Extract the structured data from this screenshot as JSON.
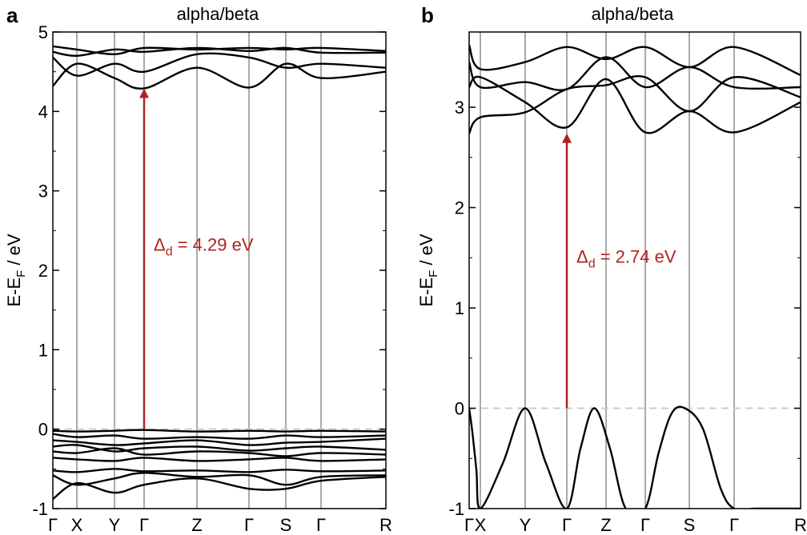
{
  "colors": {
    "band": "#000000",
    "arrow": "#b22222",
    "fermi": "#cccccc",
    "kline": "#555555"
  },
  "chart_data": [
    {
      "type": "line",
      "panel_label": "a",
      "title": "alpha/beta",
      "ylabel_main": "E-E",
      "ylabel_sub": "F",
      "ylabel_unit": " / eV",
      "ylim": [
        -1,
        5
      ],
      "yticks": [
        "-1",
        "0",
        "1",
        "2",
        "3",
        "4",
        "5"
      ],
      "xticks": [
        "Γ",
        "X",
        "Y",
        "Γ",
        "Z",
        "Γ",
        "S",
        "Γ",
        "R"
      ],
      "fermi_level": 0,
      "annotation": {
        "delta": "Δ",
        "sub": "d",
        "text": " = 4.29 eV",
        "from": 0.0,
        "to": 4.29,
        "k_index": 3
      },
      "series": [
        {
          "values": [
            4.82,
            4.78,
            4.72,
            4.8,
            4.78,
            4.8,
            4.78,
            4.8,
            4.76
          ]
        },
        {
          "values": [
            4.75,
            4.7,
            4.78,
            4.75,
            4.8,
            4.76,
            4.8,
            4.74,
            4.74
          ]
        },
        {
          "values": [
            4.68,
            4.45,
            4.6,
            4.5,
            4.72,
            4.68,
            4.55,
            4.6,
            4.55
          ]
        },
        {
          "values": [
            4.32,
            4.6,
            4.42,
            4.29,
            4.55,
            4.3,
            4.6,
            4.42,
            4.5
          ]
        },
        {
          "values": [
            -0.02,
            -0.03,
            -0.02,
            -0.01,
            -0.03,
            -0.02,
            -0.03,
            -0.02,
            -0.03
          ]
        },
        {
          "values": [
            -0.06,
            -0.1,
            -0.08,
            -0.12,
            -0.1,
            -0.12,
            -0.08,
            -0.1,
            -0.08
          ]
        },
        {
          "values": [
            -0.14,
            -0.16,
            -0.2,
            -0.18,
            -0.14,
            -0.2,
            -0.17,
            -0.16,
            -0.12
          ]
        },
        {
          "values": [
            -0.22,
            -0.2,
            -0.28,
            -0.24,
            -0.22,
            -0.27,
            -0.24,
            -0.22,
            -0.26
          ]
        },
        {
          "values": [
            -0.28,
            -0.3,
            -0.24,
            -0.32,
            -0.28,
            -0.3,
            -0.34,
            -0.3,
            -0.32
          ]
        },
        {
          "values": [
            -0.36,
            -0.38,
            -0.4,
            -0.36,
            -0.4,
            -0.38,
            -0.36,
            -0.4,
            -0.38
          ]
        },
        {
          "values": [
            -0.52,
            -0.54,
            -0.5,
            -0.53,
            -0.52,
            -0.54,
            -0.51,
            -0.53,
            -0.52
          ]
        },
        {
          "values": [
            -0.58,
            -0.7,
            -0.62,
            -0.55,
            -0.6,
            -0.58,
            -0.7,
            -0.6,
            -0.58
          ]
        },
        {
          "values": [
            -0.88,
            -0.68,
            -0.8,
            -0.7,
            -0.62,
            -0.75,
            -0.75,
            -0.65,
            -0.6
          ]
        }
      ]
    },
    {
      "type": "line",
      "panel_label": "b",
      "title": "alpha/beta",
      "ylabel_main": "E-E",
      "ylabel_sub": "F",
      "ylabel_unit": " / eV",
      "ylim": [
        -1,
        3.75
      ],
      "yticks": [
        "-1",
        "0",
        "1",
        "2",
        "3"
      ],
      "xticks": [
        "Γ",
        "X",
        "Y",
        "Γ",
        "Z",
        "Γ",
        "S",
        "Γ",
        "R"
      ],
      "fermi_level": 0,
      "annotation": {
        "delta": "Δ",
        "sub": "d",
        "text": " = 2.74 eV",
        "from": 0.0,
        "to": 2.74,
        "k_index": 3
      },
      "series": [
        {
          "values": [
            3.62,
            3.38,
            3.45,
            3.6,
            3.48,
            3.6,
            3.4,
            3.6,
            3.32
          ]
        },
        {
          "values": [
            3.45,
            3.2,
            3.25,
            3.18,
            3.5,
            3.2,
            3.4,
            3.2,
            3.2
          ]
        },
        {
          "values": [
            3.2,
            3.3,
            3.05,
            2.8,
            3.28,
            2.75,
            2.96,
            2.75,
            3.05
          ]
        },
        {
          "values": [
            2.74,
            2.9,
            2.95,
            3.18,
            3.22,
            3.3,
            2.96,
            3.3,
            3.1
          ]
        },
        {
          "x": [
            0,
            0.3,
            0.65,
            1.0,
            1.5,
            2.0,
            2.5,
            3.0,
            3.35,
            3.7,
            4.1,
            4.5,
            5.0,
            5.3,
            5.6,
            5.9,
            6.3,
            6.7,
            7.0,
            7.3,
            7.55,
            7.9,
            8.0
          ],
          "values": [
            0,
            -0.25,
            -0.62,
            -1.0,
            -0.55,
            0,
            -0.55,
            -1.0,
            -0.4,
            0,
            -0.4,
            -1.0,
            -1.0,
            -0.45,
            -0.05,
            0,
            -0.2,
            -0.8,
            -1.0,
            -1.0,
            -1.0,
            -1.0,
            -1.0
          ]
        }
      ]
    }
  ]
}
